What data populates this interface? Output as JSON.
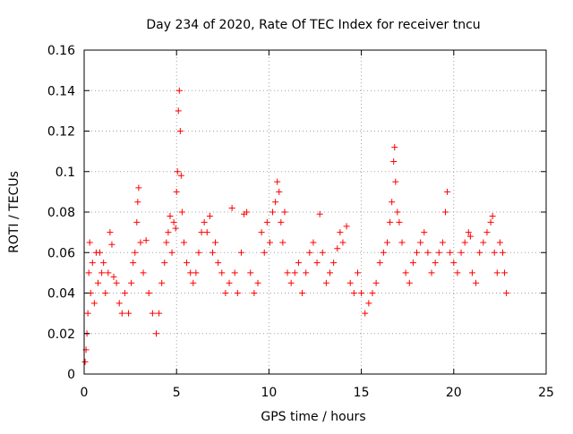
{
  "chart_data": {
    "type": "scatter",
    "title": "Day 234 of 2020, Rate Of TEC Index for receiver tncu",
    "xlabel": "GPS time / hours",
    "ylabel": "ROTI / TECUs",
    "xlim": [
      0,
      25
    ],
    "ylim": [
      0,
      0.16
    ],
    "x_ticks": [
      0,
      5,
      10,
      15,
      20,
      25
    ],
    "y_ticks": [
      0,
      0.02,
      0.04,
      0.06,
      0.08,
      0.1,
      0.12,
      0.14,
      0.16
    ],
    "x_tick_labels": [
      "0",
      "5",
      "10",
      "15",
      "20",
      "25"
    ],
    "y_tick_labels": [
      "0",
      "0.02",
      "0.04",
      "0.06",
      "0.08",
      "0.1",
      "0.12",
      "0.14",
      "0.16"
    ],
    "grid": true,
    "marker": "+",
    "color": "#ff0000",
    "series": [
      {
        "points": [
          [
            0.05,
            0.006
          ],
          [
            0.1,
            0.012
          ],
          [
            0.15,
            0.02
          ],
          [
            0.2,
            0.03
          ],
          [
            0.25,
            0.05
          ],
          [
            0.3,
            0.065
          ],
          [
            0.35,
            0.04
          ],
          [
            0.45,
            0.055
          ],
          [
            0.55,
            0.035
          ],
          [
            0.65,
            0.06
          ],
          [
            0.75,
            0.045
          ],
          [
            0.85,
            0.06
          ],
          [
            0.95,
            0.05
          ],
          [
            1.05,
            0.055
          ],
          [
            1.15,
            0.04
          ],
          [
            1.3,
            0.05
          ],
          [
            1.4,
            0.07
          ],
          [
            1.5,
            0.064
          ],
          [
            1.6,
            0.048
          ],
          [
            1.75,
            0.045
          ],
          [
            1.9,
            0.035
          ],
          [
            2.05,
            0.03
          ],
          [
            2.2,
            0.04
          ],
          [
            2.4,
            0.03
          ],
          [
            2.55,
            0.045
          ],
          [
            2.65,
            0.055
          ],
          [
            2.75,
            0.06
          ],
          [
            2.85,
            0.075
          ],
          [
            2.9,
            0.085
          ],
          [
            2.95,
            0.092
          ],
          [
            3.05,
            0.065
          ],
          [
            3.2,
            0.05
          ],
          [
            3.35,
            0.066
          ],
          [
            3.5,
            0.04
          ],
          [
            3.7,
            0.03
          ],
          [
            3.9,
            0.02
          ],
          [
            4.05,
            0.03
          ],
          [
            4.2,
            0.045
          ],
          [
            4.35,
            0.055
          ],
          [
            4.45,
            0.065
          ],
          [
            4.55,
            0.07
          ],
          [
            4.65,
            0.078
          ],
          [
            4.75,
            0.06
          ],
          [
            4.85,
            0.075
          ],
          [
            4.95,
            0.072
          ],
          [
            5.0,
            0.09
          ],
          [
            5.05,
            0.1
          ],
          [
            5.1,
            0.13
          ],
          [
            5.15,
            0.14
          ],
          [
            5.2,
            0.12
          ],
          [
            5.25,
            0.098
          ],
          [
            5.3,
            0.08
          ],
          [
            5.4,
            0.065
          ],
          [
            5.55,
            0.055
          ],
          [
            5.75,
            0.05
          ],
          [
            5.9,
            0.045
          ],
          [
            6.05,
            0.05
          ],
          [
            6.2,
            0.06
          ],
          [
            6.35,
            0.07
          ],
          [
            6.5,
            0.075
          ],
          [
            6.65,
            0.07
          ],
          [
            6.8,
            0.078
          ],
          [
            6.95,
            0.06
          ],
          [
            7.1,
            0.065
          ],
          [
            7.25,
            0.055
          ],
          [
            7.45,
            0.05
          ],
          [
            7.65,
            0.04
          ],
          [
            7.85,
            0.045
          ],
          [
            8.0,
            0.082
          ],
          [
            8.15,
            0.05
          ],
          [
            8.3,
            0.04
          ],
          [
            8.5,
            0.06
          ],
          [
            8.65,
            0.079
          ],
          [
            8.8,
            0.08
          ],
          [
            9.0,
            0.05
          ],
          [
            9.2,
            0.04
          ],
          [
            9.4,
            0.045
          ],
          [
            9.6,
            0.07
          ],
          [
            9.75,
            0.06
          ],
          [
            9.9,
            0.075
          ],
          [
            10.05,
            0.065
          ],
          [
            10.2,
            0.08
          ],
          [
            10.35,
            0.085
          ],
          [
            10.45,
            0.095
          ],
          [
            10.55,
            0.09
          ],
          [
            10.65,
            0.075
          ],
          [
            10.75,
            0.065
          ],
          [
            10.85,
            0.08
          ],
          [
            11.0,
            0.05
          ],
          [
            11.2,
            0.045
          ],
          [
            11.4,
            0.05
          ],
          [
            11.6,
            0.055
          ],
          [
            11.8,
            0.04
          ],
          [
            12.0,
            0.05
          ],
          [
            12.2,
            0.06
          ],
          [
            12.4,
            0.065
          ],
          [
            12.6,
            0.055
          ],
          [
            12.75,
            0.079
          ],
          [
            12.9,
            0.06
          ],
          [
            13.1,
            0.045
          ],
          [
            13.3,
            0.05
          ],
          [
            13.5,
            0.055
          ],
          [
            13.7,
            0.062
          ],
          [
            13.85,
            0.07
          ],
          [
            14.0,
            0.065
          ],
          [
            14.2,
            0.073
          ],
          [
            14.4,
            0.045
          ],
          [
            14.6,
            0.04
          ],
          [
            14.8,
            0.05
          ],
          [
            15.0,
            0.04
          ],
          [
            15.2,
            0.03
          ],
          [
            15.4,
            0.035
          ],
          [
            15.6,
            0.04
          ],
          [
            15.8,
            0.045
          ],
          [
            16.0,
            0.055
          ],
          [
            16.2,
            0.06
          ],
          [
            16.4,
            0.065
          ],
          [
            16.55,
            0.075
          ],
          [
            16.65,
            0.085
          ],
          [
            16.75,
            0.105
          ],
          [
            16.8,
            0.112
          ],
          [
            16.85,
            0.095
          ],
          [
            16.95,
            0.08
          ],
          [
            17.05,
            0.075
          ],
          [
            17.2,
            0.065
          ],
          [
            17.4,
            0.05
          ],
          [
            17.6,
            0.045
          ],
          [
            17.8,
            0.055
          ],
          [
            18.0,
            0.06
          ],
          [
            18.2,
            0.065
          ],
          [
            18.4,
            0.07
          ],
          [
            18.6,
            0.06
          ],
          [
            18.8,
            0.05
          ],
          [
            19.0,
            0.055
          ],
          [
            19.2,
            0.06
          ],
          [
            19.4,
            0.065
          ],
          [
            19.55,
            0.08
          ],
          [
            19.65,
            0.09
          ],
          [
            19.8,
            0.06
          ],
          [
            20.0,
            0.055
          ],
          [
            20.2,
            0.05
          ],
          [
            20.4,
            0.06
          ],
          [
            20.6,
            0.065
          ],
          [
            20.8,
            0.07
          ],
          [
            20.9,
            0.068
          ],
          [
            21.0,
            0.05
          ],
          [
            21.2,
            0.045
          ],
          [
            21.4,
            0.06
          ],
          [
            21.6,
            0.065
          ],
          [
            21.8,
            0.07
          ],
          [
            22.0,
            0.075
          ],
          [
            22.1,
            0.078
          ],
          [
            22.2,
            0.06
          ],
          [
            22.35,
            0.05
          ],
          [
            22.5,
            0.065
          ],
          [
            22.65,
            0.06
          ],
          [
            22.75,
            0.05
          ],
          [
            22.85,
            0.04
          ]
        ]
      }
    ]
  }
}
